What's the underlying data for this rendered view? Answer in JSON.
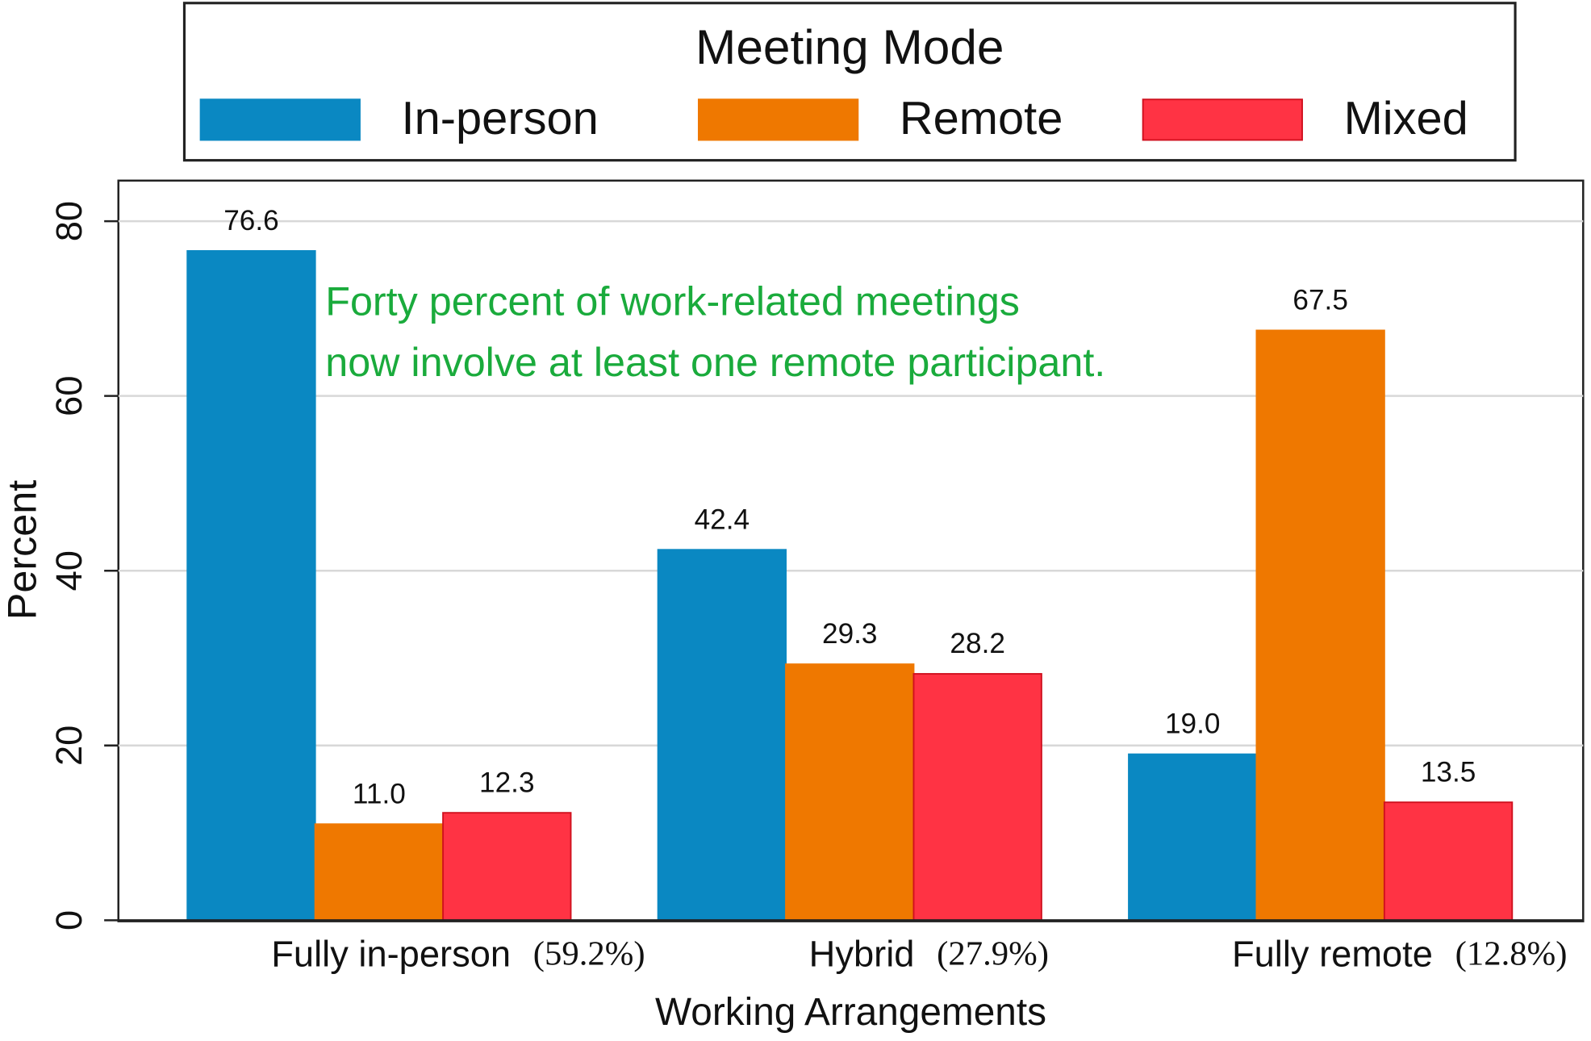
{
  "chart_data": {
    "type": "bar",
    "legend_title": "Meeting Mode",
    "legend_position": "top",
    "annotation": [
      "Forty percent of work-related meetings",
      "now involve at least one remote participant."
    ],
    "annotation_color": "#1aab3c",
    "x_label": "Working Arrangements",
    "y_label": "Percent",
    "categories": [
      "Fully in-person",
      "Hybrid",
      "Fully remote"
    ],
    "category_shares": [
      "(59.2%)",
      "(27.9%)",
      "(12.8%)"
    ],
    "series": [
      {
        "name": "In-person",
        "color": "#0a88c2",
        "values": [
          76.6,
          42.4,
          19.0
        ],
        "value_labels": [
          "76.6",
          "42.4",
          "19.0"
        ]
      },
      {
        "name": "Remote",
        "color": "#ef7800",
        "values": [
          11.0,
          29.3,
          67.5
        ],
        "value_labels": [
          "11.0",
          "29.3",
          "67.5"
        ]
      },
      {
        "name": "Mixed",
        "color": "#ff3344",
        "values": [
          12.3,
          28.2,
          13.5
        ],
        "value_labels": [
          "12.3",
          "28.2",
          "13.5"
        ]
      }
    ],
    "ylim": [
      0,
      80
    ],
    "yticks": [
      0,
      20,
      40,
      60,
      80
    ],
    "grid": true
  }
}
